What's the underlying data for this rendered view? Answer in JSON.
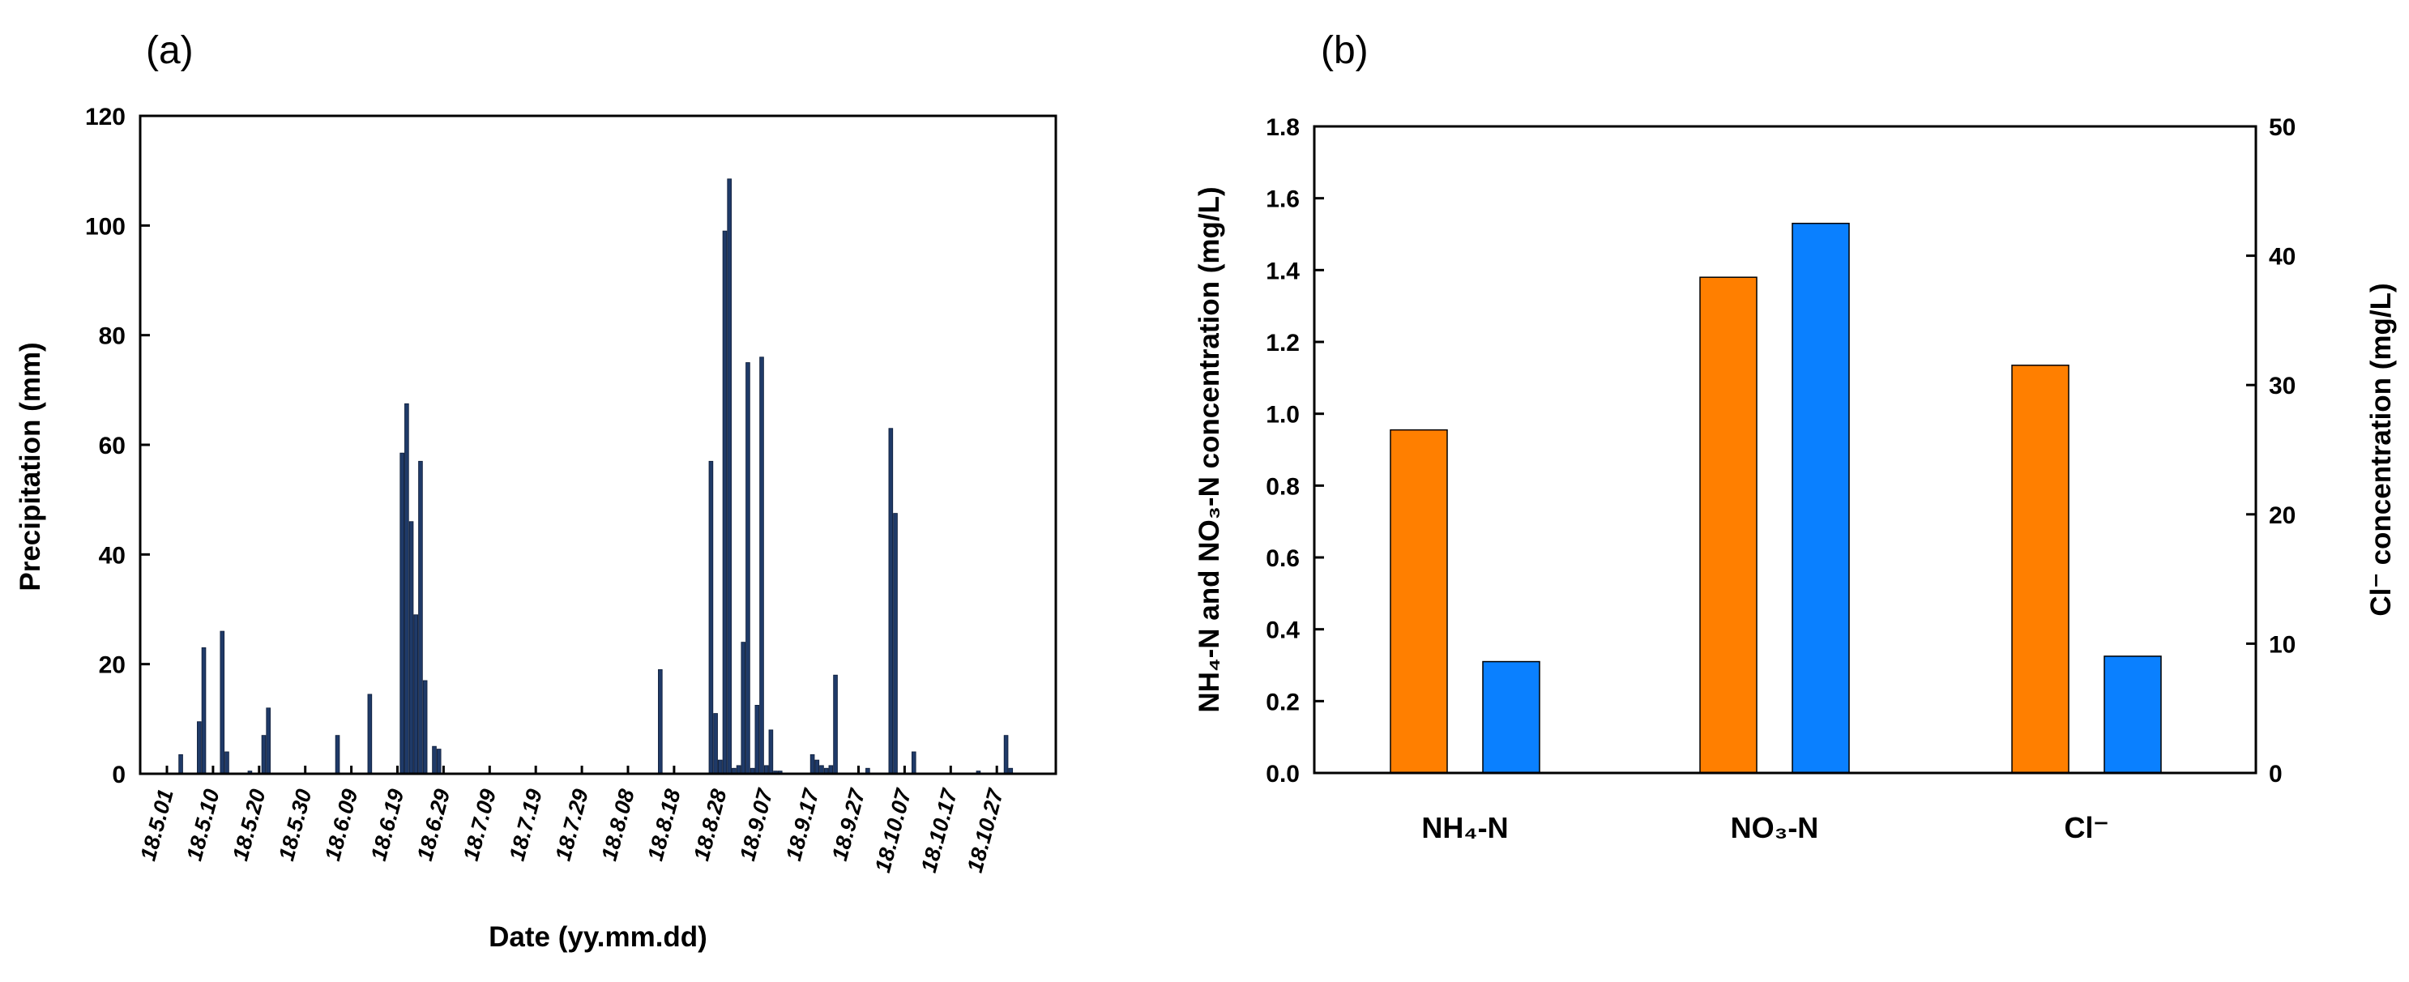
{
  "chart_data": [
    {
      "panel": "(a)",
      "type": "bar",
      "xlabel": "Date (yy.mm.dd)",
      "ylabel": "Precipitation (mm)",
      "ylim": [
        0,
        120
      ],
      "yticks": [
        "0",
        "20",
        "40",
        "60",
        "80",
        "100",
        "120"
      ],
      "xtick_labels": [
        "18.5.01",
        "18.5.10",
        "18.5.20",
        "18.5.30",
        "18.6.09",
        "18.6.19",
        "18.6.29",
        "18.7.09",
        "18.7.19",
        "18.7.29",
        "18.8.08",
        "18.8.18",
        "18.8.28",
        "18.9.07",
        "18.9.17",
        "18.9.27",
        "18.10.07",
        "18.10.17",
        "18.10.27"
      ],
      "bar_color": "#1f3a68",
      "days_since_may1": [
        3,
        7,
        8,
        12,
        13,
        18,
        21,
        22,
        37,
        44,
        51,
        52,
        53,
        54,
        55,
        56,
        58,
        59,
        107,
        118,
        119,
        120,
        121,
        122,
        123,
        124,
        125,
        126,
        127,
        128,
        129,
        130,
        131,
        132,
        133,
        140,
        141,
        142,
        143,
        144,
        145,
        152,
        157,
        158,
        162,
        176,
        182,
        183
      ],
      "values": [
        3.5,
        9.5,
        23,
        26,
        4,
        0.5,
        7,
        12,
        7,
        14.5,
        58.5,
        67.5,
        46,
        29,
        57,
        17,
        5,
        4.5,
        19,
        57,
        11,
        2.5,
        99,
        108.5,
        1,
        1.5,
        24,
        75,
        1,
        12.5,
        76,
        1.5,
        8,
        0.5,
        0.5,
        3.5,
        2.5,
        1.5,
        1,
        1.5,
        18,
        1,
        63,
        47.5,
        4,
        0.5,
        7,
        1
      ]
    },
    {
      "panel": "(b)",
      "type": "bar",
      "categories": [
        "NH₄-N",
        "NO₃-N",
        "Cl⁻"
      ],
      "ylabel_left": "NH₄-N and NO₃-N concentration (mg/L)",
      "ylabel_right": "Cl⁻ concentration (mg/L)",
      "ylim_left": [
        0,
        1.8
      ],
      "ylim_right": [
        0,
        50
      ],
      "yticks_left": [
        "0.0",
        "0.2",
        "0.4",
        "0.6",
        "0.8",
        "1.0",
        "1.2",
        "1.4",
        "1.6",
        "1.8"
      ],
      "yticks_right": [
        "0",
        "10",
        "20",
        "30",
        "40",
        "50"
      ],
      "series": [
        {
          "name": "orange",
          "color": "#ff7f00",
          "values": [
            0.955,
            1.38,
            1.135
          ]
        },
        {
          "name": "blue",
          "color": "#0a80ff",
          "values": [
            0.31,
            1.53,
            0.325
          ]
        }
      ]
    }
  ]
}
